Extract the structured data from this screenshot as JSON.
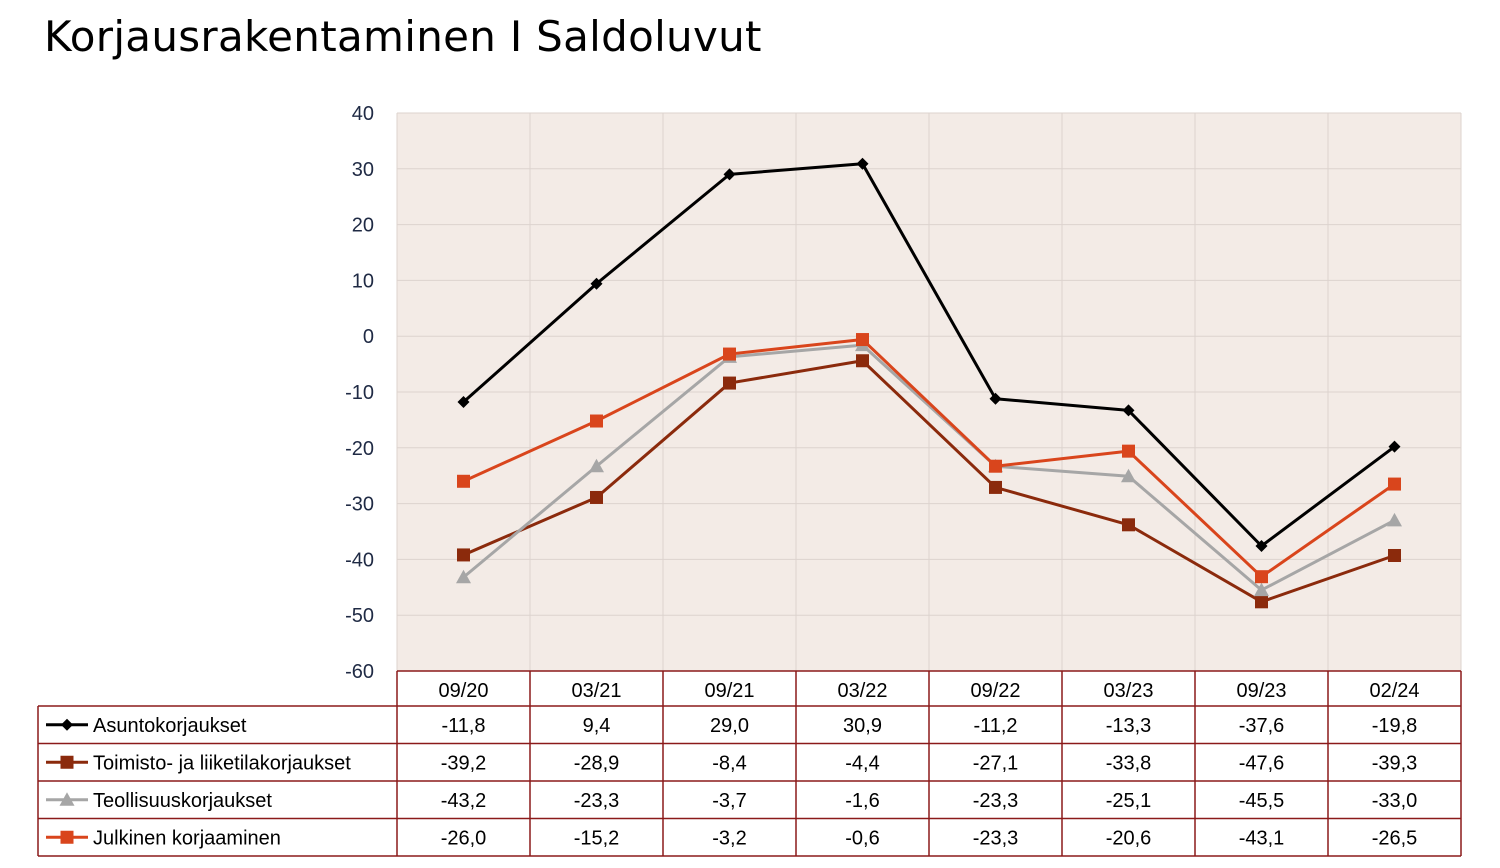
{
  "title": "Korjausrakentaminen I Saldoluvut",
  "colors": {
    "plot_background": "#f3ebe6",
    "gridline": "#dcd3ce",
    "table_border": "#8b1a1a",
    "tick_text": "#1f2a44"
  },
  "chart_data": {
    "type": "line",
    "title": "Korjausrakentaminen I Saldoluvut",
    "xlabel": "",
    "ylabel": "",
    "ylim": [
      -60,
      40
    ],
    "yticks": [
      40,
      30,
      20,
      10,
      0,
      -10,
      -20,
      -30,
      -40,
      -50,
      -60
    ],
    "grid": true,
    "legend": "data-table-left",
    "categories": [
      "09/20",
      "03/21",
      "09/21",
      "03/22",
      "09/22",
      "03/23",
      "09/23",
      "02/24"
    ],
    "series": [
      {
        "name": "Asuntokorjaukset",
        "color": "#000000",
        "marker": "diamond",
        "values": [
          -11.8,
          9.4,
          29.0,
          30.9,
          -11.2,
          -13.3,
          -37.6,
          -19.8
        ],
        "labels": [
          "-11,8",
          "9,4",
          "29,0",
          "30,9",
          "-11,2",
          "-13,3",
          "-37,6",
          "-19,8"
        ]
      },
      {
        "name": "Toimisto- ja liiketilakorjaukset",
        "color": "#8b2a0c",
        "marker": "square",
        "values": [
          -39.2,
          -28.9,
          -8.4,
          -4.4,
          -27.1,
          -33.8,
          -47.6,
          -39.3
        ],
        "labels": [
          "-39,2",
          "-28,9",
          "-8,4",
          "-4,4",
          "-27,1",
          "-33,8",
          "-47,6",
          "-39,3"
        ]
      },
      {
        "name": "Teollisuuskorjaukset",
        "color": "#a6a6a6",
        "marker": "triangle",
        "values": [
          -43.2,
          -23.3,
          -3.7,
          -1.6,
          -23.3,
          -25.1,
          -45.5,
          -33.0
        ],
        "labels": [
          "-43,2",
          "-23,3",
          "-3,7",
          "-1,6",
          "-23,3",
          "-25,1",
          "-45,5",
          "-33,0"
        ]
      },
      {
        "name": "Julkinen korjaaminen",
        "color": "#d9451c",
        "marker": "square",
        "values": [
          -26.0,
          -15.2,
          -3.2,
          -0.6,
          -23.3,
          -20.6,
          -43.1,
          -26.5
        ],
        "labels": [
          "-26,0",
          "-15,2",
          "-3,2",
          "-0,6",
          "-23,3",
          "-20,6",
          "-43,1",
          "-26,5"
        ]
      }
    ]
  }
}
